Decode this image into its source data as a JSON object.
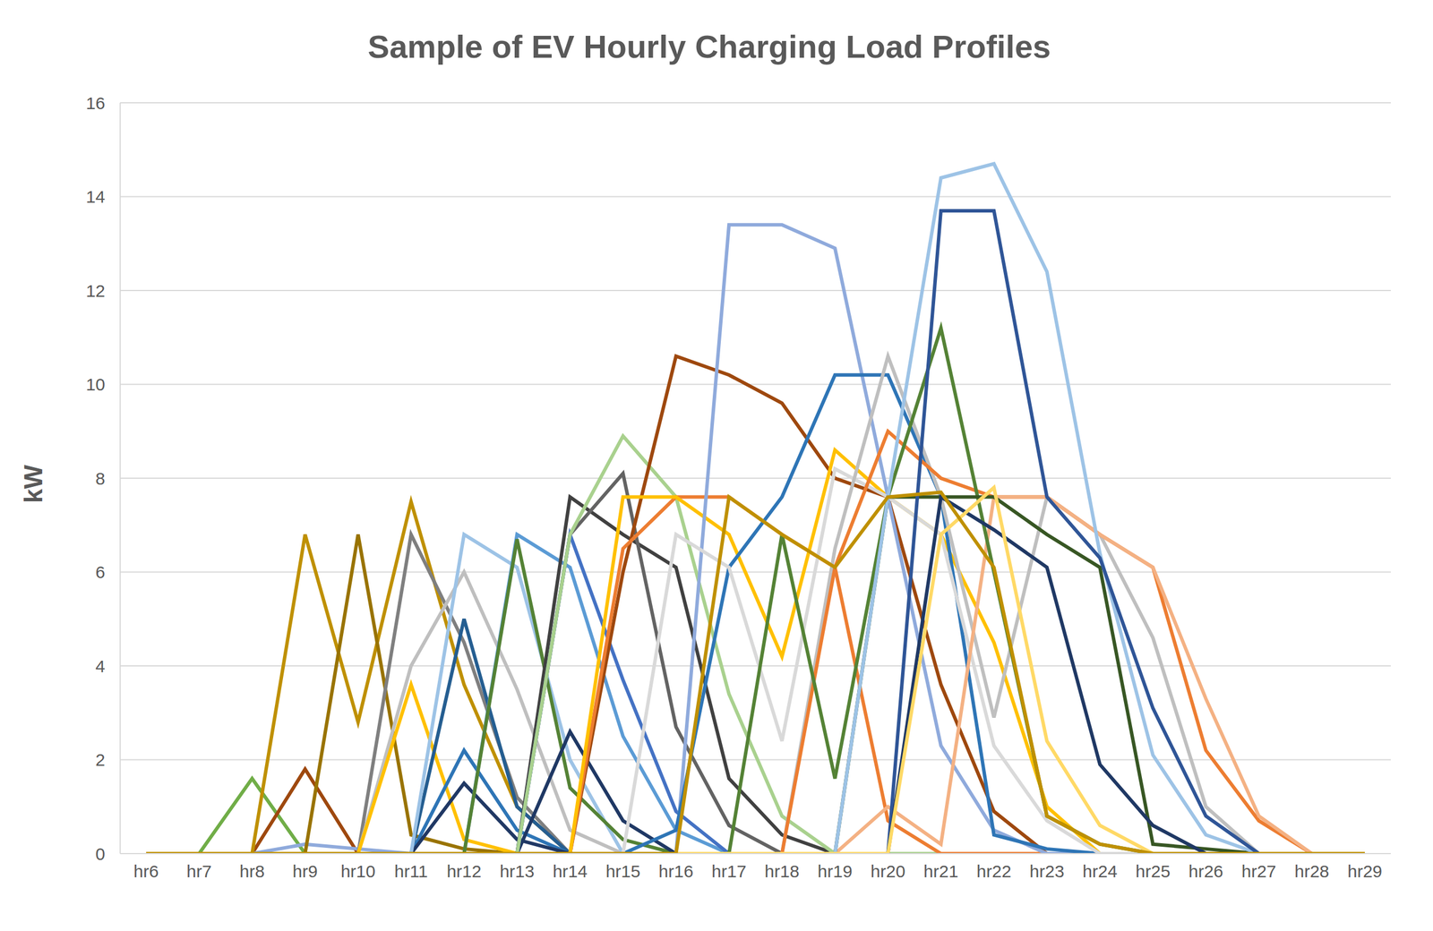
{
  "chart_data": {
    "type": "line",
    "title": "Sample of EV Hourly Charging Load Profiles",
    "y_label": "kW",
    "categories": [
      "hr6",
      "hr7",
      "hr8",
      "hr9",
      "hr10",
      "hr11",
      "hr12",
      "hr13",
      "hr14",
      "hr15",
      "hr16",
      "hr17",
      "hr18",
      "hr19",
      "hr20",
      "hr21",
      "hr22",
      "hr23",
      "hr24",
      "hr25",
      "hr26",
      "hr27",
      "hr28",
      "hr29"
    ],
    "ylim": [
      0,
      16
    ],
    "yticks": [
      0,
      2,
      4,
      6,
      8,
      10,
      12,
      14,
      16
    ],
    "grid": true,
    "series": [
      {
        "color": "#70ad47",
        "values": [
          0,
          0,
          1.6,
          0,
          0,
          0,
          0,
          0,
          0,
          0,
          0,
          0,
          0,
          0,
          0,
          0,
          0,
          0,
          0,
          0,
          0,
          0,
          0,
          0
        ]
      },
      {
        "color": "#9e480e",
        "values": [
          0,
          0,
          0,
          1.8,
          0,
          0,
          0,
          0,
          0,
          0,
          0,
          0,
          0,
          0,
          0,
          0,
          0,
          0,
          0,
          0,
          0,
          0,
          0,
          0
        ]
      },
      {
        "color": "#8faadc",
        "values": [
          0,
          0,
          0,
          0.2,
          0.1,
          0,
          0,
          0,
          0,
          0,
          0,
          0,
          0,
          0,
          0,
          0,
          0,
          0,
          0,
          0,
          0,
          0,
          0,
          0
        ]
      },
      {
        "color": "#bf9000",
        "values": [
          0,
          0,
          0,
          6.8,
          2.8,
          7.5,
          3.6,
          1.0,
          0,
          0,
          0,
          0,
          0,
          0,
          0,
          0,
          0,
          0,
          0,
          0,
          0,
          0,
          0,
          0
        ]
      },
      {
        "color": "#997300",
        "values": [
          0,
          0,
          0,
          0,
          6.8,
          0.4,
          0.1,
          0,
          0,
          0,
          0,
          0,
          0,
          0,
          0,
          0,
          0,
          0,
          0,
          0,
          0,
          0,
          0,
          0
        ]
      },
      {
        "color": "#7f7f7f",
        "values": [
          0,
          0,
          0,
          0,
          0,
          6.8,
          4.5,
          1.2,
          0,
          0,
          0,
          0,
          0,
          0,
          0,
          0,
          0,
          0,
          0,
          0,
          0,
          0,
          0,
          0
        ]
      },
      {
        "color": "#bfbfbf",
        "values": [
          0,
          0,
          0,
          0,
          0,
          4.0,
          6.0,
          3.5,
          0.5,
          0,
          0,
          0,
          0,
          0,
          0,
          0,
          0,
          0,
          0,
          0,
          0,
          0,
          0,
          0
        ]
      },
      {
        "color": "#ffc000",
        "values": [
          0,
          0,
          0,
          0,
          0,
          3.6,
          0.3,
          0,
          0,
          0,
          0,
          0,
          0,
          0,
          0,
          0,
          0,
          0,
          0,
          0,
          0,
          0,
          0,
          0
        ]
      },
      {
        "color": "#255e91",
        "values": [
          0,
          0,
          0,
          0,
          0,
          0,
          5.0,
          1.0,
          0,
          0,
          0,
          0,
          0,
          0,
          0,
          0,
          0,
          0,
          0,
          0,
          0,
          0,
          0,
          0
        ]
      },
      {
        "color": "#2e75b6",
        "values": [
          0,
          0,
          0,
          0,
          0,
          0,
          2.2,
          0.5,
          0,
          0,
          0,
          0,
          0,
          0,
          0,
          0,
          0,
          0,
          0,
          0,
          0,
          0,
          0,
          0
        ]
      },
      {
        "color": "#203864",
        "values": [
          0,
          0,
          0,
          0,
          0,
          0,
          1.5,
          0.3,
          0,
          0,
          0,
          0,
          0,
          0,
          0,
          0,
          0,
          0,
          0,
          0,
          0,
          0,
          0,
          0
        ]
      },
      {
        "color": "#9dc3e6",
        "values": [
          0,
          0,
          0,
          0,
          0,
          0,
          6.8,
          6.1,
          2.0,
          0,
          0,
          0,
          0,
          0,
          0,
          0,
          0,
          0,
          0,
          0,
          0,
          0,
          0,
          0
        ]
      },
      {
        "color": "#5b9bd5",
        "values": [
          0,
          0,
          0,
          0,
          0,
          0,
          0,
          6.8,
          6.1,
          2.5,
          0.5,
          0,
          0,
          0,
          0,
          0,
          0,
          0,
          0,
          0,
          0,
          0,
          0,
          0
        ]
      },
      {
        "color": "#548235",
        "values": [
          0,
          0,
          0,
          0,
          0,
          0,
          0,
          6.7,
          1.4,
          0.3,
          0,
          0,
          0,
          0,
          0,
          0,
          0,
          0,
          0,
          0,
          0,
          0,
          0,
          0
        ]
      },
      {
        "color": "#1f3864",
        "values": [
          0,
          0,
          0,
          0,
          0,
          0,
          0,
          0,
          2.6,
          0.7,
          0,
          0,
          0,
          0,
          0,
          0,
          0,
          0,
          0,
          0,
          0,
          0,
          0,
          0
        ]
      },
      {
        "color": "#404040",
        "values": [
          0,
          0,
          0,
          0,
          0,
          0,
          0,
          0,
          7.6,
          6.8,
          6.1,
          1.6,
          0.4,
          0,
          0,
          0,
          0,
          0,
          0,
          0,
          0,
          0,
          0,
          0
        ]
      },
      {
        "color": "#636363",
        "values": [
          0,
          0,
          0,
          0,
          0,
          0,
          0,
          0,
          6.8,
          8.1,
          2.7,
          0.6,
          0,
          0,
          0,
          0,
          0,
          0,
          0,
          0,
          0,
          0,
          0,
          0
        ]
      },
      {
        "color": "#4472c4",
        "values": [
          0,
          0,
          0,
          0,
          0,
          0,
          0,
          0,
          6.8,
          3.7,
          0.9,
          0,
          0,
          0,
          0,
          0,
          0,
          0,
          0,
          0,
          0,
          0,
          0,
          0
        ]
      },
      {
        "color": "#a9d18e",
        "values": [
          0,
          0,
          0,
          0,
          0,
          0,
          0,
          0,
          6.8,
          8.9,
          7.6,
          3.4,
          0.8,
          0,
          0,
          0,
          0,
          0,
          0,
          0,
          0,
          0,
          0,
          0
        ]
      },
      {
        "color": "#9e480e",
        "values": [
          0,
          0,
          0,
          0,
          0,
          0,
          0,
          0,
          0,
          6.0,
          10.6,
          10.2,
          9.6,
          8.0,
          7.6,
          3.6,
          0.9,
          0,
          0,
          0,
          0,
          0,
          0,
          0
        ]
      },
      {
        "color": "#ed7d31",
        "values": [
          0,
          0,
          0,
          0,
          0,
          0,
          0,
          0,
          0,
          6.5,
          7.6,
          7.6,
          6.8,
          6.1,
          0.7,
          0,
          0,
          0,
          0,
          0,
          0,
          0,
          0,
          0
        ]
      },
      {
        "color": "#ffc000",
        "values": [
          0,
          0,
          0,
          0,
          0,
          0,
          0,
          0,
          0,
          7.6,
          7.6,
          6.8,
          4.2,
          8.6,
          7.6,
          6.8,
          4.5,
          1.0,
          0,
          0,
          0,
          0,
          0,
          0
        ]
      },
      {
        "color": "#8faadc",
        "values": [
          0,
          0,
          0,
          0,
          0,
          0,
          0,
          0,
          0,
          0,
          0,
          13.4,
          13.4,
          12.9,
          7.6,
          2.3,
          0.5,
          0,
          0,
          0,
          0,
          0,
          0,
          0
        ]
      },
      {
        "color": "#2e75b6",
        "values": [
          0,
          0,
          0,
          0,
          0,
          0,
          0,
          0,
          0,
          0,
          0.5,
          6.1,
          7.6,
          10.2,
          10.2,
          7.6,
          0.4,
          0.1,
          0,
          0,
          0,
          0,
          0,
          0
        ]
      },
      {
        "color": "#d9d9d9",
        "values": [
          0,
          0,
          0,
          0,
          0,
          0,
          0,
          0,
          0,
          0,
          6.8,
          6.1,
          2.4,
          8.2,
          7.6,
          6.8,
          2.3,
          0.7,
          0,
          0,
          0,
          0,
          0,
          0
        ]
      },
      {
        "color": "#bfbfbf",
        "values": [
          0,
          0,
          0,
          0,
          0,
          0,
          0,
          0,
          0,
          0,
          0,
          0,
          0,
          6.5,
          10.6,
          7.6,
          2.9,
          7.6,
          6.8,
          4.6,
          1.0,
          0,
          0,
          0
        ]
      },
      {
        "color": "#ed7d31",
        "values": [
          0,
          0,
          0,
          0,
          0,
          0,
          0,
          0,
          0,
          0,
          0,
          0,
          0,
          6.1,
          9.0,
          8.0,
          7.6,
          7.6,
          6.8,
          6.1,
          2.2,
          0.7,
          0,
          0
        ]
      },
      {
        "color": "#f4b183",
        "values": [
          0,
          0,
          0,
          0,
          0,
          0,
          0,
          0,
          0,
          0,
          0,
          0,
          0,
          0,
          1.0,
          0.2,
          7.6,
          7.6,
          6.8,
          6.1,
          3.3,
          0.8,
          0,
          0
        ]
      },
      {
        "color": "#548235",
        "values": [
          0,
          0,
          0,
          0,
          0,
          0,
          0,
          0,
          0,
          0,
          0,
          0,
          6.8,
          1.6,
          7.6,
          11.2,
          6.0,
          0.8,
          0.2,
          0,
          0,
          0,
          0,
          0
        ]
      },
      {
        "color": "#375623",
        "values": [
          0,
          0,
          0,
          0,
          0,
          0,
          0,
          0,
          0,
          0,
          0,
          0,
          0,
          0,
          7.6,
          7.6,
          7.6,
          6.8,
          6.1,
          0.2,
          0.1,
          0,
          0,
          0
        ]
      },
      {
        "color": "#9dc3e6",
        "values": [
          0,
          0,
          0,
          0,
          0,
          0,
          0,
          0,
          0,
          0,
          0,
          0,
          0,
          0,
          7.6,
          14.4,
          14.7,
          12.4,
          6.4,
          2.1,
          0.4,
          0,
          0,
          0
        ]
      },
      {
        "color": "#2f5597",
        "values": [
          0,
          0,
          0,
          0,
          0,
          0,
          0,
          0,
          0,
          0,
          0,
          0,
          0,
          0,
          0,
          13.7,
          13.7,
          7.6,
          6.3,
          3.1,
          0.8,
          0,
          0,
          0
        ]
      },
      {
        "color": "#1f3864",
        "values": [
          0,
          0,
          0,
          0,
          0,
          0,
          0,
          0,
          0,
          0,
          0,
          0,
          0,
          0,
          0,
          7.6,
          6.9,
          6.1,
          1.9,
          0.6,
          0,
          0,
          0,
          0
        ]
      },
      {
        "color": "#ffd966",
        "values": [
          0,
          0,
          0,
          0,
          0,
          0,
          0,
          0,
          0,
          0,
          0,
          0,
          0,
          0,
          0,
          6.8,
          7.8,
          2.4,
          0.6,
          0,
          0,
          0,
          0,
          0
        ]
      },
      {
        "color": "#bf9000",
        "values": [
          0,
          0,
          0,
          0,
          0,
          0,
          0,
          0,
          0,
          0,
          0,
          7.6,
          6.8,
          6.1,
          7.6,
          7.7,
          6.1,
          0.8,
          0.2,
          0,
          0,
          0,
          0,
          0
        ]
      }
    ]
  }
}
